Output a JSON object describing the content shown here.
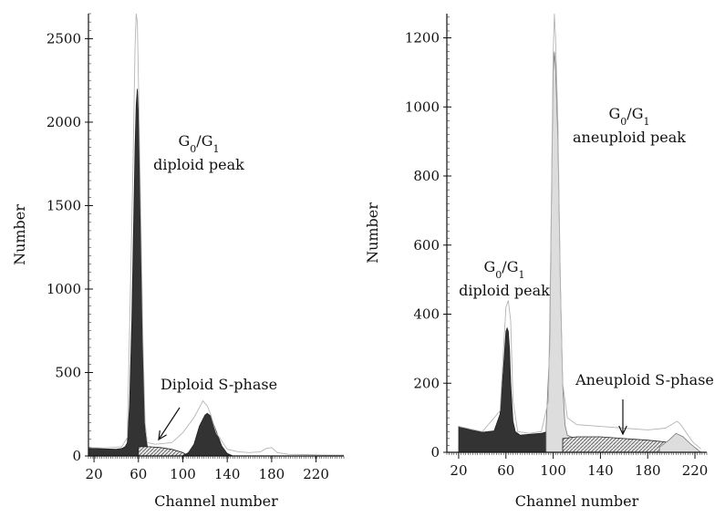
{
  "chart_data": [
    {
      "type": "area",
      "xlabel": "Channel number",
      "ylabel": "Number",
      "xlim": [
        15,
        245
      ],
      "ylim": [
        0,
        2650
      ],
      "xticks": [
        20,
        60,
        100,
        140,
        180,
        220
      ],
      "yticks": [
        0,
        500,
        1000,
        1500,
        2000,
        2500
      ],
      "series": [
        {
          "name": "diploid G0/G1 fill",
          "color": "#333333",
          "x": [
            15,
            20,
            30,
            40,
            45,
            48,
            50,
            52,
            54,
            56,
            57,
            58,
            59,
            60,
            62,
            64,
            66,
            68,
            72,
            78
          ],
          "values": [
            45,
            45,
            42,
            40,
            45,
            55,
            80,
            300,
            800,
            1500,
            1850,
            2100,
            2200,
            2050,
            1400,
            600,
            150,
            55,
            45,
            30
          ]
        },
        {
          "name": "diploid S-phase fill",
          "color": "#9a9a9a",
          "x": [
            60,
            70,
            80,
            90,
            100,
            105
          ],
          "values": [
            55,
            55,
            50,
            40,
            20,
            0
          ]
        },
        {
          "name": "diploid G2/M fill",
          "color": "#333333",
          "x": [
            100,
            105,
            110,
            115,
            120,
            122,
            125,
            130,
            135,
            140,
            145
          ],
          "values": [
            0,
            20,
            70,
            180,
            245,
            255,
            240,
            150,
            60,
            15,
            0
          ]
        },
        {
          "name": "raw histogram outline",
          "color": "#bbbbbb",
          "x": [
            15,
            30,
            45,
            50,
            55,
            57,
            58,
            59,
            60,
            62,
            64,
            66,
            68,
            75,
            90,
            100,
            110,
            115,
            118,
            122,
            125,
            130,
            140,
            150,
            160,
            170,
            175,
            180,
            185,
            195,
            210,
            230,
            245
          ],
          "values": [
            50,
            48,
            55,
            110,
            1700,
            2450,
            2650,
            2600,
            2250,
            1500,
            700,
            200,
            80,
            70,
            80,
            140,
            230,
            290,
            330,
            300,
            250,
            140,
            40,
            25,
            20,
            25,
            45,
            50,
            20,
            10,
            8,
            5,
            5
          ]
        }
      ],
      "annotations": [
        {
          "lines": [
            "G0/G1",
            "diploid peak"
          ]
        },
        {
          "text": "Diploid S-phase"
        }
      ]
    },
    {
      "type": "area",
      "xlabel": "Channel number",
      "ylabel": "Number",
      "xlim": [
        10,
        230
      ],
      "ylim": [
        0,
        1270
      ],
      "xticks": [
        20,
        60,
        100,
        140,
        180,
        220
      ],
      "yticks": [
        0,
        200,
        400,
        600,
        800,
        1000,
        1200
      ],
      "series": [
        {
          "name": "diploid G0/G1 fill",
          "color": "#333333",
          "x": [
            20,
            30,
            40,
            50,
            55,
            58,
            60,
            61,
            62,
            63,
            64,
            66,
            68,
            72,
            80,
            90,
            95,
            100,
            103,
            106
          ],
          "values": [
            75,
            65,
            58,
            62,
            110,
            250,
            350,
            360,
            350,
            300,
            200,
            90,
            60,
            50,
            52,
            55,
            60,
            70,
            60,
            40
          ]
        },
        {
          "name": "aneuploid G0/G1 fill",
          "color": "#dddddd",
          "x": [
            94,
            97,
            99,
            100,
            101,
            102,
            104,
            106,
            108,
            110,
            112,
            118
          ],
          "values": [
            70,
            300,
            850,
            1100,
            1160,
            1120,
            900,
            500,
            200,
            80,
            50,
            40
          ]
        },
        {
          "name": "aneuploid S-phase fill",
          "color": "#999999",
          "x": [
            108,
            120,
            140,
            160,
            180,
            195,
            205,
            220
          ],
          "values": [
            40,
            45,
            45,
            40,
            35,
            30,
            20,
            0
          ]
        },
        {
          "name": "aneuploid G2/M fill",
          "color": "#dddddd",
          "x": [
            190,
            198,
            204,
            210,
            216,
            225
          ],
          "values": [
            15,
            35,
            55,
            45,
            25,
            0
          ]
        },
        {
          "name": "raw histogram outline",
          "color": "#bbbbbb",
          "x": [
            20,
            40,
            55,
            58,
            60,
            62,
            64,
            66,
            70,
            80,
            90,
            96,
            98,
            100,
            101,
            102,
            104,
            106,
            108,
            112,
            120,
            140,
            160,
            180,
            195,
            200,
            205,
            208,
            212,
            218,
            225
          ],
          "values": [
            75,
            60,
            120,
            300,
            420,
            440,
            380,
            150,
            60,
            55,
            60,
            150,
            600,
            1150,
            1270,
            1200,
            950,
            500,
            200,
            100,
            80,
            75,
            70,
            65,
            70,
            80,
            90,
            80,
            60,
            30,
            10
          ]
        }
      ],
      "annotations": [
        {
          "lines": [
            "G0/G1",
            "aneuploid peak"
          ]
        },
        {
          "lines": [
            "G0/G1",
            "diploid peak"
          ]
        },
        {
          "text": "Aneuploid S-phase"
        }
      ]
    }
  ]
}
